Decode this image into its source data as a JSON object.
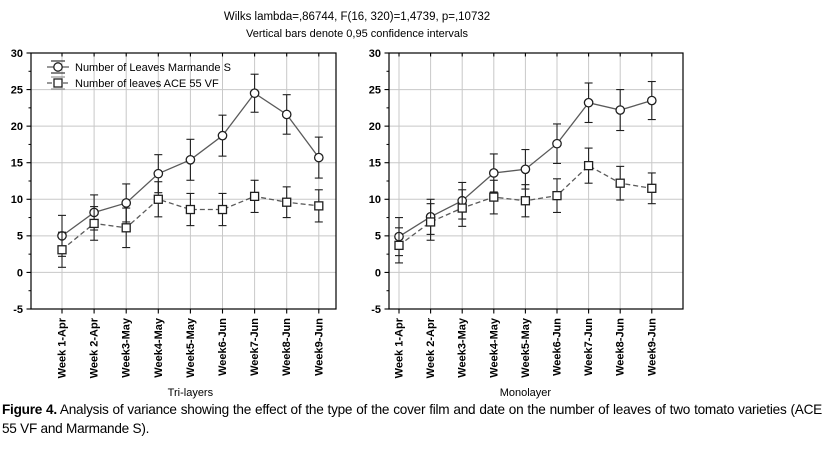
{
  "figure": {
    "title": "Wilks lambda=,86744, F(16, 320)=1,4739, p=,10732",
    "subtitle": "Vertical bars denote 0,95 confidence intervals"
  },
  "legend": [
    {
      "label": "Number of Leaves Marmande S",
      "marker": "circle",
      "line": "solid"
    },
    {
      "label": "Number of leaves ACE 55 VF",
      "marker": "square",
      "line": "dashed"
    }
  ],
  "caption": {
    "label": "Figure 4.",
    "text": "Analysis of variance showing the effect of the type of the cover film and date on the number of leaves of two tomato varieties (ACE 55 VF and Marmande S)."
  },
  "colors": {
    "grid": "#c8c8c8",
    "axis": "#000000",
    "line": "#5a5a5a",
    "marker_stroke": "#1f1f1f",
    "marker_fill": "#ffffff",
    "error_bar": "#1f1f1f",
    "legend_cap": "#8a8a8a"
  },
  "chart_data": [
    {
      "type": "line",
      "panel_label": "Tri-layers",
      "categories": [
        "Week 1-Apr",
        "Week 2-Apr",
        "Week3-May",
        "Week4-May",
        "Week5-May",
        "Week6-Jun",
        "Week7-Jun",
        "Week8-Jun",
        "Week9-Jun"
      ],
      "ylim": [
        -5,
        30
      ],
      "yticks": [
        30,
        25,
        20,
        15,
        10,
        5,
        0,
        -5
      ],
      "grid": true,
      "legend_position": "top-left-inside",
      "series": [
        {
          "name": "Number of Leaves Marmande S",
          "marker": "circle",
          "line": "solid",
          "values": [
            5.0,
            8.2,
            9.5,
            13.5,
            15.4,
            18.7,
            24.5,
            21.6,
            15.7
          ],
          "ci": [
            2.8,
            2.4,
            2.6,
            2.6,
            2.8,
            2.8,
            2.6,
            2.7,
            2.8
          ]
        },
        {
          "name": "Number of leaves ACE 55 VF",
          "marker": "square",
          "line": "dashed",
          "values": [
            3.1,
            6.7,
            6.1,
            10.0,
            8.6,
            8.6,
            10.4,
            9.6,
            9.1
          ],
          "ci": [
            2.4,
            2.3,
            2.7,
            2.4,
            2.2,
            2.2,
            2.2,
            2.1,
            2.2
          ]
        }
      ]
    },
    {
      "type": "line",
      "panel_label": "Monolayer",
      "categories": [
        "Week 1-Apr",
        "Week 2-Apr",
        "Week3-May",
        "Week4-May",
        "Week5-May",
        "Week6-Jun",
        "Week7-Jun",
        "Week8-Jun",
        "Week9-Jun"
      ],
      "ylim": [
        -5,
        30
      ],
      "yticks": [
        30,
        25,
        20,
        15,
        10,
        5,
        0,
        -5
      ],
      "grid": true,
      "legend_position": "none",
      "series": [
        {
          "name": "Number of Leaves Marmande S",
          "marker": "circle",
          "line": "solid",
          "values": [
            4.9,
            7.6,
            9.8,
            13.6,
            14.1,
            17.6,
            23.2,
            22.2,
            23.5
          ],
          "ci": [
            2.6,
            2.4,
            2.5,
            2.6,
            2.7,
            2.7,
            2.7,
            2.8,
            2.6
          ]
        },
        {
          "name": "Number of leaves ACE 55 VF",
          "marker": "square",
          "line": "dashed",
          "values": [
            3.7,
            6.9,
            8.8,
            10.3,
            9.8,
            10.5,
            14.6,
            12.2,
            11.5
          ],
          "ci": [
            2.4,
            2.5,
            2.5,
            2.3,
            2.2,
            2.3,
            2.4,
            2.3,
            2.1
          ]
        }
      ]
    }
  ]
}
